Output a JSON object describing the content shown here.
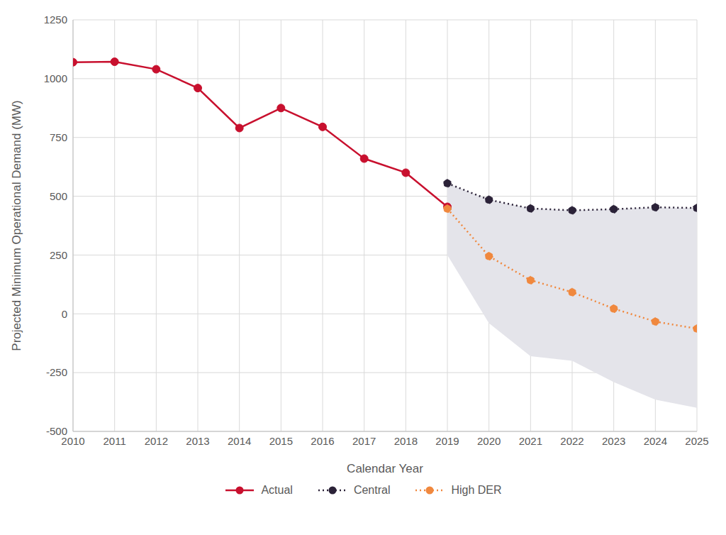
{
  "chart_data": {
    "type": "line",
    "x_label": "Calendar Year",
    "y_label": "Projected Minimum Operational Demand (MW)",
    "xlim": [
      2010,
      2025
    ],
    "xticks": [
      2010,
      2011,
      2012,
      2013,
      2014,
      2015,
      2016,
      2017,
      2018,
      2019,
      2020,
      2021,
      2022,
      2023,
      2024,
      2025
    ],
    "ylim": [
      -500,
      1250
    ],
    "yticks": [
      -500,
      -250,
      0,
      250,
      500,
      750,
      1000,
      1250
    ],
    "grid": true,
    "legend": "bottom",
    "series": [
      {
        "name": "Actual",
        "color": "#c8102e",
        "marker": "circle",
        "line_style": "solid",
        "x": [
          2010,
          2011,
          2012,
          2013,
          2014,
          2015,
          2016,
          2017,
          2018,
          2019
        ],
        "values": [
          1070,
          1072,
          1040,
          960,
          790,
          875,
          795,
          660,
          600,
          455
        ]
      },
      {
        "name": "Central",
        "color": "#2b2238",
        "marker": "circle",
        "line_style": "dotted",
        "x": [
          2019,
          2020,
          2021,
          2022,
          2023,
          2024,
          2025
        ],
        "values": [
          555,
          485,
          448,
          440,
          445,
          453,
          450
        ]
      },
      {
        "name": "High DER",
        "color": "#f0883e",
        "marker": "circle",
        "line_style": "dotted",
        "x": [
          2019,
          2020,
          2021,
          2022,
          2023,
          2024,
          2025
        ],
        "values": [
          447,
          245,
          143,
          92,
          22,
          -33,
          -63
        ]
      }
    ],
    "range_band": {
      "color": "#e4e4ea",
      "x": [
        2019,
        2020,
        2021,
        2022,
        2023,
        2024,
        2025
      ],
      "lower": [
        250,
        -40,
        -180,
        -200,
        -290,
        -365,
        -400
      ],
      "upper": [
        555,
        485,
        448,
        440,
        445,
        453,
        450
      ]
    }
  }
}
